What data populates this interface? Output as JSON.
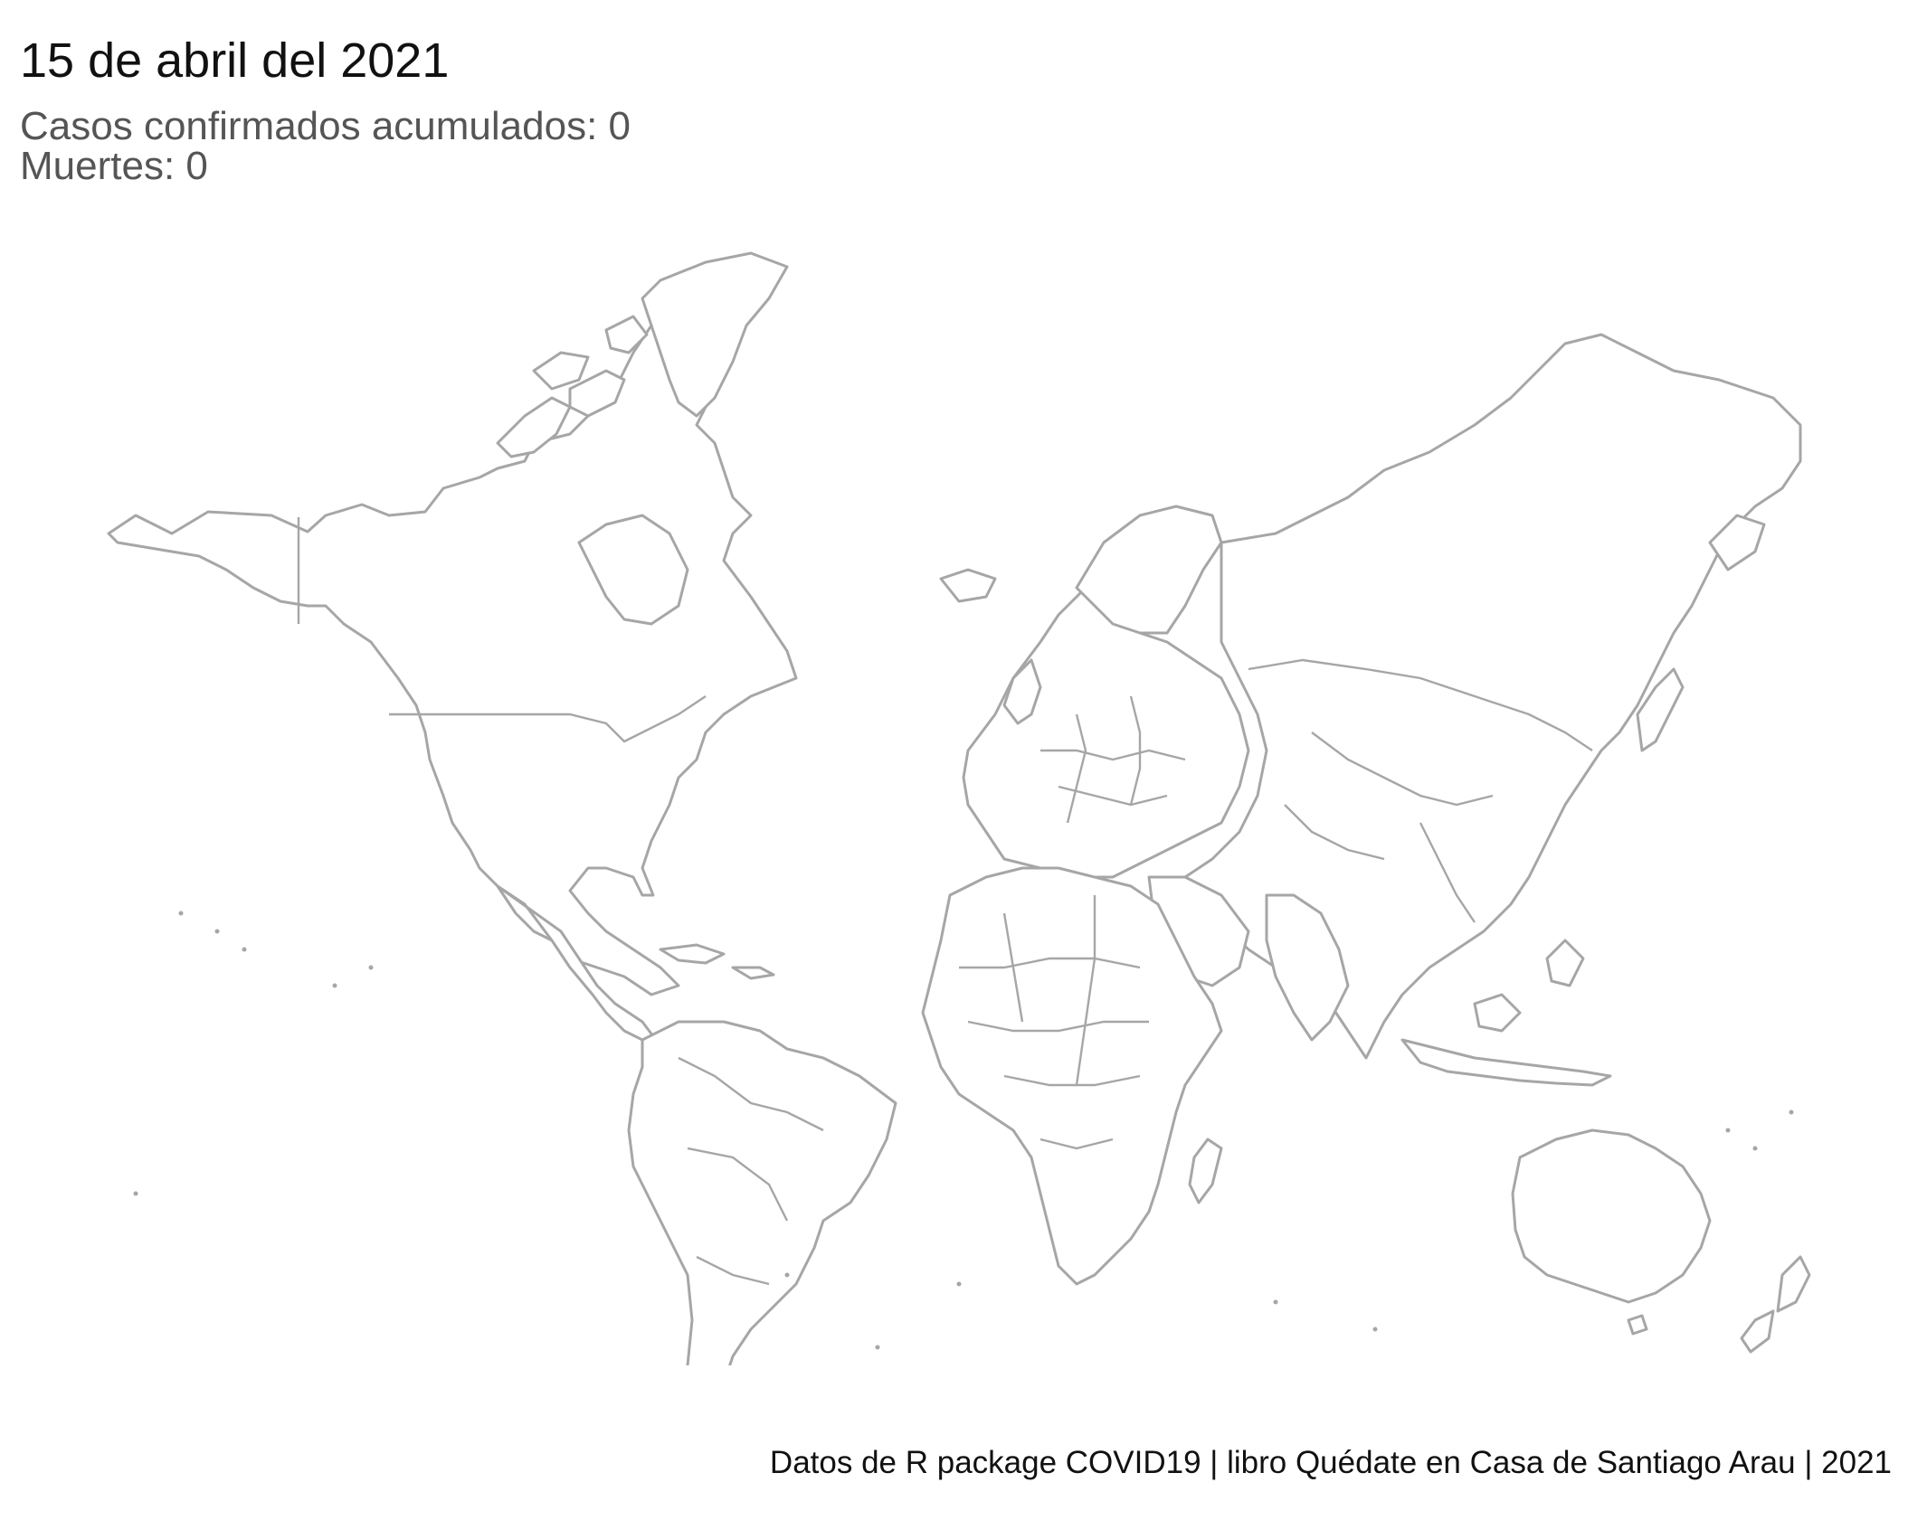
{
  "header": {
    "title": "15 de abril del 2021",
    "cases_line": "Casos confirmados acumulados: 0",
    "deaths_line": "Muertes: 0"
  },
  "caption": {
    "text": "Datos de R package COVID19 | libro Quédate en Casa de Santiago Arau | 2021"
  },
  "map": {
    "projection": "world",
    "outline_color": "#a6a6a6",
    "fill_color": "#ffffff"
  }
}
